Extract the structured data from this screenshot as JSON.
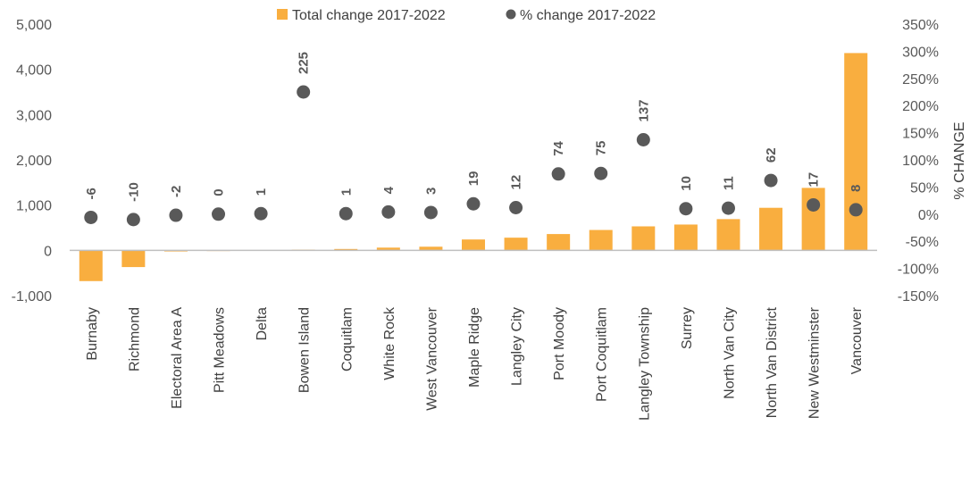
{
  "chart_data": {
    "type": "bar+scatter",
    "categories": [
      "Burnaby",
      "Richmond",
      "Electoral Area A",
      "Pitt Meadows",
      "Delta",
      "Bowen Island",
      "Coquitlam",
      "White Rock",
      "West Vancouver",
      "Maple Ridge",
      "Langley City",
      "Port Moody",
      "Port Coquitlam",
      "Langley Township",
      "Surrey",
      "North Van City",
      "North Van District",
      "New Westminster",
      "Vancouver"
    ],
    "series": [
      {
        "name": "Total change 2017-2022",
        "kind": "bar",
        "axis": "left",
        "color": "#F9AE3F",
        "values": [
          -680,
          -370,
          -25,
          -5,
          5,
          15,
          30,
          60,
          80,
          240,
          280,
          360,
          450,
          530,
          570,
          690,
          940,
          1380,
          4360
        ]
      },
      {
        "name": "% change 2017-2022",
        "kind": "scatter",
        "axis": "right",
        "color": "#595959",
        "values": [
          -6,
          -10,
          -2,
          0,
          1,
          225,
          1,
          4,
          3,
          19,
          12,
          74,
          75,
          137,
          10,
          11,
          62,
          17,
          8
        ],
        "labels": [
          "-6",
          "-10",
          "-2",
          "0",
          "1",
          "225",
          "1",
          "4",
          "3",
          "19",
          "12",
          "74",
          "75",
          "137",
          "10",
          "11",
          "62",
          "17",
          "8"
        ]
      }
    ],
    "left_axis": {
      "min": -1000,
      "max": 5000,
      "step": 1000,
      "tick_labels": [
        "-1,000",
        "0",
        "1,000",
        "2,000",
        "3,000",
        "4,000",
        "5,000"
      ]
    },
    "right_axis": {
      "min": -150,
      "max": 350,
      "step": 50,
      "title": "% CHANGE",
      "tick_labels": [
        "-150%",
        "-100%",
        "-50%",
        "0%",
        "50%",
        "100%",
        "150%",
        "200%",
        "250%",
        "300%",
        "350%"
      ]
    },
    "legend": {
      "position": "top-center",
      "items": [
        "Total change 2017-2022",
        "% change 2017-2022"
      ]
    }
  }
}
